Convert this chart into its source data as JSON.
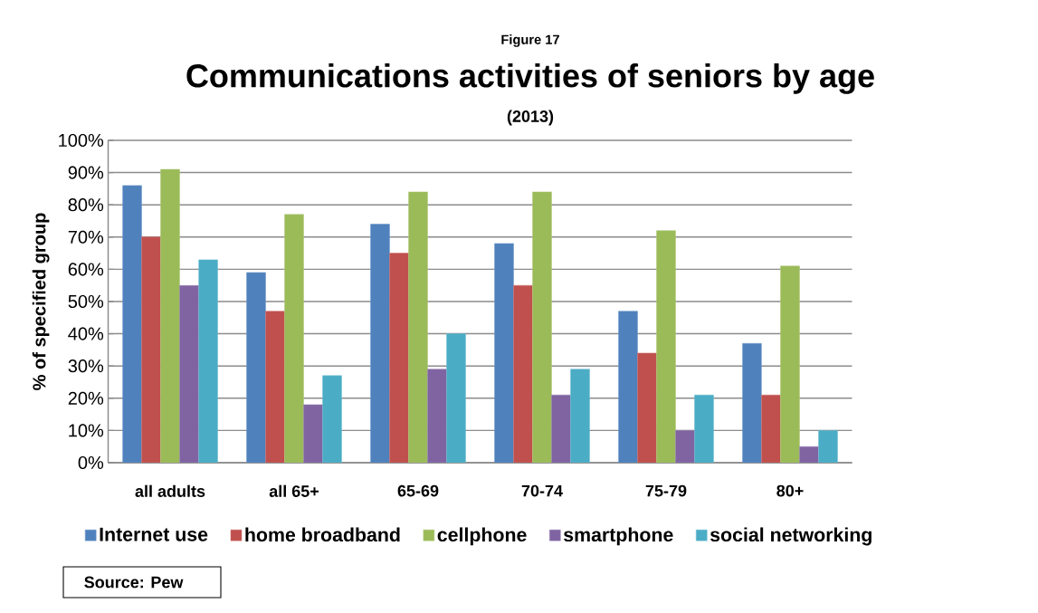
{
  "chart_data": {
    "type": "bar",
    "title": "Communications activities of seniors by age",
    "subtitle": "(2013)",
    "ylabel": "% of specified group",
    "annotations": [
      "Figure 17",
      "Source:  Pew"
    ],
    "categories": [
      "all adults",
      "all 65+",
      "65-69",
      "70-74",
      "75-79",
      "80+"
    ],
    "series": [
      {
        "name": "Internet use",
        "color": "#4f81bd",
        "values": [
          86,
          59,
          74,
          68,
          47,
          37
        ]
      },
      {
        "name": "home broadband",
        "color": "#c0504d",
        "values": [
          70,
          47,
          65,
          55,
          34,
          21
        ]
      },
      {
        "name": "cellphone",
        "color": "#9bbb59",
        "values": [
          91,
          77,
          84,
          84,
          72,
          61
        ]
      },
      {
        "name": "smartphone",
        "color": "#8064a2",
        "values": [
          55,
          18,
          29,
          21,
          10,
          5
        ]
      },
      {
        "name": "social networking",
        "color": "#4bacc6",
        "values": [
          63,
          27,
          40,
          29,
          21,
          10
        ]
      }
    ],
    "ylim": [
      0,
      100
    ],
    "yticks": [
      {
        "value": 0,
        "label": "0%"
      },
      {
        "value": 10,
        "label": "10%"
      },
      {
        "value": 20,
        "label": "20%"
      },
      {
        "value": 30,
        "label": "30%"
      },
      {
        "value": 40,
        "label": "40%"
      },
      {
        "value": 50,
        "label": "50%"
      },
      {
        "value": 60,
        "label": "60%"
      },
      {
        "value": 70,
        "label": "70%"
      },
      {
        "value": 80,
        "label": "80%"
      },
      {
        "value": 90,
        "label": "90%"
      },
      {
        "value": 100,
        "label": "100%"
      }
    ],
    "grid": "y",
    "legend": "bottom"
  }
}
